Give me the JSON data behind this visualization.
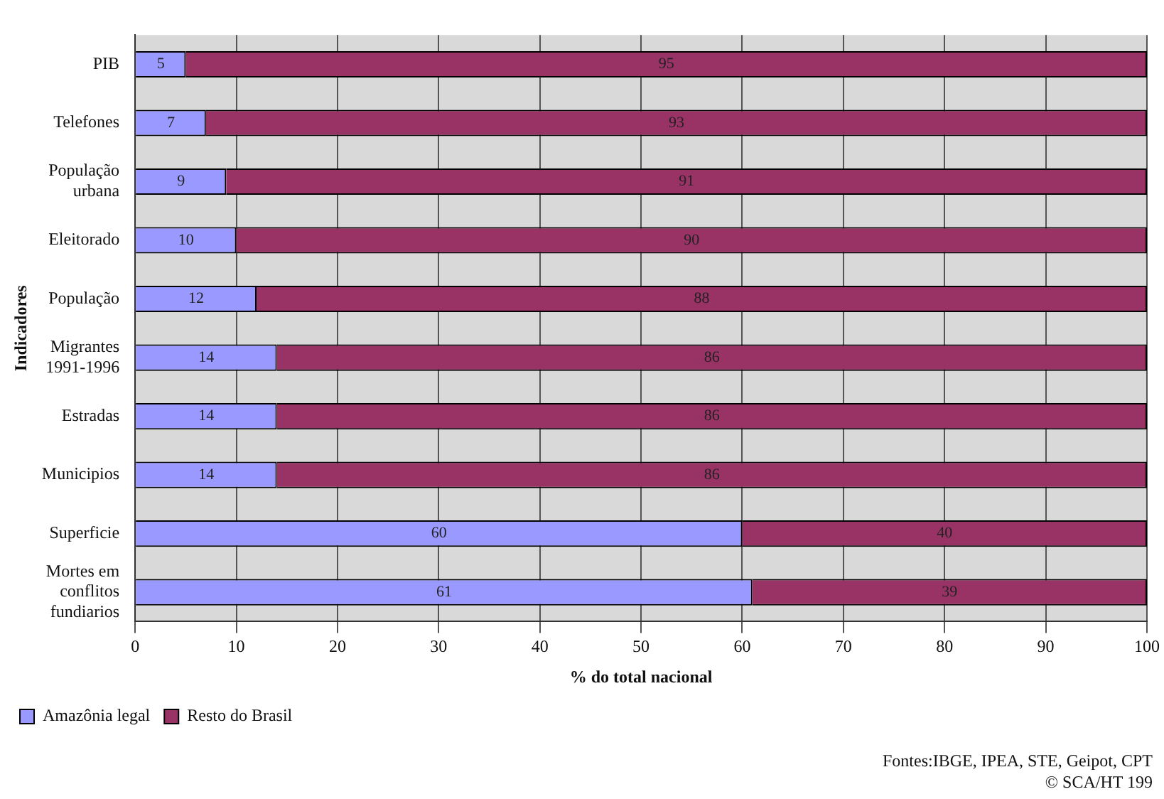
{
  "chart_data": {
    "type": "bar",
    "orientation": "horizontal",
    "stacked": true,
    "categories": [
      "PIB",
      "Telefones",
      "População urbana",
      "Eleitorado",
      "População",
      "Migrantes 1991-1996",
      "Estradas",
      "Municipios",
      "Superficie",
      "Mortes em conflitos fundiarios"
    ],
    "series": [
      {
        "name": "Amazônia legal",
        "color": "#9999ff",
        "values": [
          5,
          7,
          9,
          10,
          12,
          14,
          14,
          14,
          60,
          61
        ]
      },
      {
        "name": "Resto do Brasil",
        "color": "#993366",
        "values": [
          95,
          93,
          91,
          90,
          88,
          86,
          86,
          86,
          40,
          39
        ]
      }
    ],
    "xlim": [
      0,
      100
    ],
    "xticks": [
      0,
      10,
      20,
      30,
      40,
      50,
      60,
      70,
      80,
      90,
      100
    ],
    "xlabel": "% do total nacional",
    "ylabel": "Indicadores",
    "grid": "x",
    "legend": "bottom left",
    "data_labels": true,
    "annotations": [
      "Fontes:IBGE, IPEA, STE, Geipot, CPT",
      "© SCA/HT 199"
    ]
  }
}
